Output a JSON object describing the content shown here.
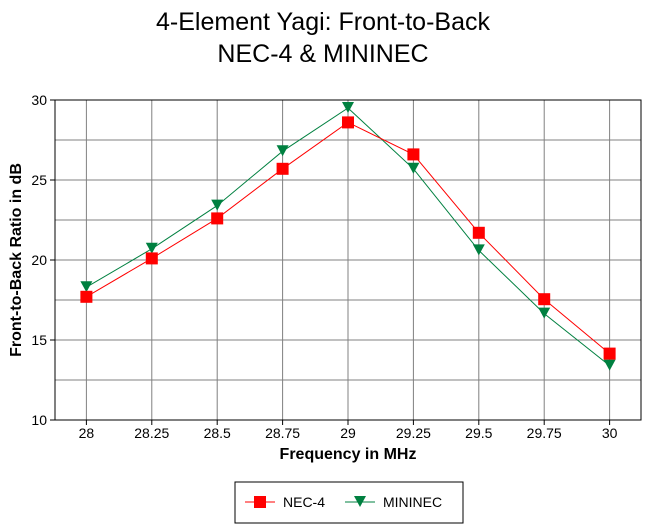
{
  "chart_data": {
    "type": "line",
    "title": [
      "4-Element Yagi:  Front-to-Back",
      "NEC-4 & MININEC"
    ],
    "xlabel": "Frequency in MHz",
    "ylabel": "Front-to-Back Ratio in dB",
    "x": [
      28,
      28.25,
      28.5,
      28.75,
      29,
      29.25,
      29.5,
      29.75,
      30
    ],
    "x_tick_labels": [
      "28",
      "28.25",
      "28.5",
      "28.75",
      "29",
      "29.25",
      "29.5",
      "29.75",
      "30"
    ],
    "y_ticks": [
      10,
      15,
      20,
      25,
      30
    ],
    "y_tick_labels": [
      "10",
      "15",
      "20",
      "25",
      "30"
    ],
    "y_grid_step": 2.5,
    "ylim": [
      10,
      30
    ],
    "xlim": [
      27.88,
      30.12
    ],
    "grid": true,
    "legend_position": "bottom",
    "series": [
      {
        "name": "NEC-4",
        "color": "#ff0000",
        "marker": "square",
        "values": [
          17.7,
          20.1,
          22.6,
          25.7,
          28.6,
          26.6,
          21.7,
          17.55,
          14.15
        ]
      },
      {
        "name": "MININEC",
        "color": "#008040",
        "marker": "triangle-down",
        "values": [
          18.3,
          20.7,
          23.4,
          26.8,
          29.5,
          25.7,
          20.6,
          16.65,
          13.4
        ]
      }
    ]
  }
}
